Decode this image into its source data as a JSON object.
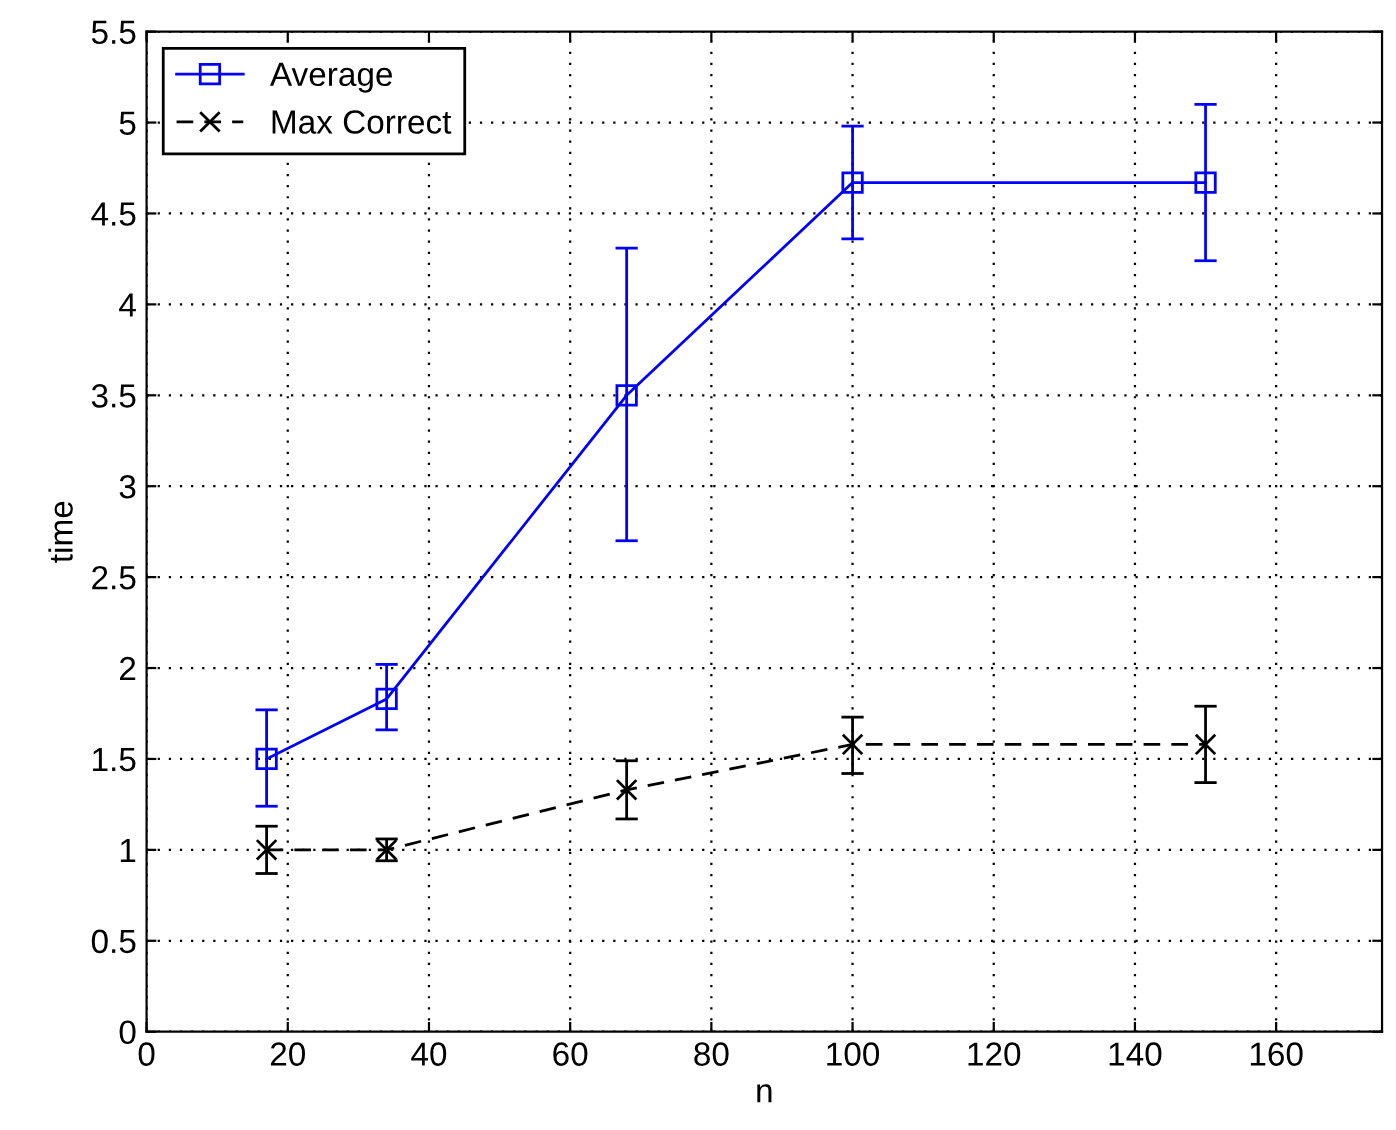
{
  "chart_data": {
    "type": "line",
    "xlabel": "n",
    "ylabel": "time",
    "xlim": [
      0,
      175
    ],
    "ylim": [
      0,
      5.5
    ],
    "xticks": [
      0,
      20,
      40,
      60,
      80,
      100,
      120,
      140,
      160
    ],
    "yticks": [
      0,
      0.5,
      1,
      1.5,
      2,
      2.5,
      3,
      3.5,
      4,
      4.5,
      5,
      5.5
    ],
    "grid": true,
    "legend": "top left",
    "x": [
      17,
      34,
      68,
      100,
      150
    ],
    "series": [
      {
        "name": "Average",
        "color": "#0000ff",
        "marker": "square",
        "line_style": "solid",
        "values": [
          1.5,
          1.83,
          3.5,
          4.67,
          4.67
        ],
        "errors": [
          [
            1.24,
            1.77
          ],
          [
            1.66,
            2.02
          ],
          [
            2.7,
            4.31
          ],
          [
            4.36,
            4.98
          ],
          [
            4.24,
            5.1
          ]
        ]
      },
      {
        "name": "Max Correct",
        "color": "#000000",
        "marker": "cross",
        "line_style": "dashed",
        "values": [
          1.0,
          1.0,
          1.33,
          1.58,
          1.58
        ],
        "errors": [
          [
            0.87,
            1.13
          ],
          [
            0.94,
            1.06
          ],
          [
            1.17,
            1.49
          ],
          [
            1.42,
            1.73
          ],
          [
            1.37,
            1.79
          ]
        ]
      }
    ]
  }
}
